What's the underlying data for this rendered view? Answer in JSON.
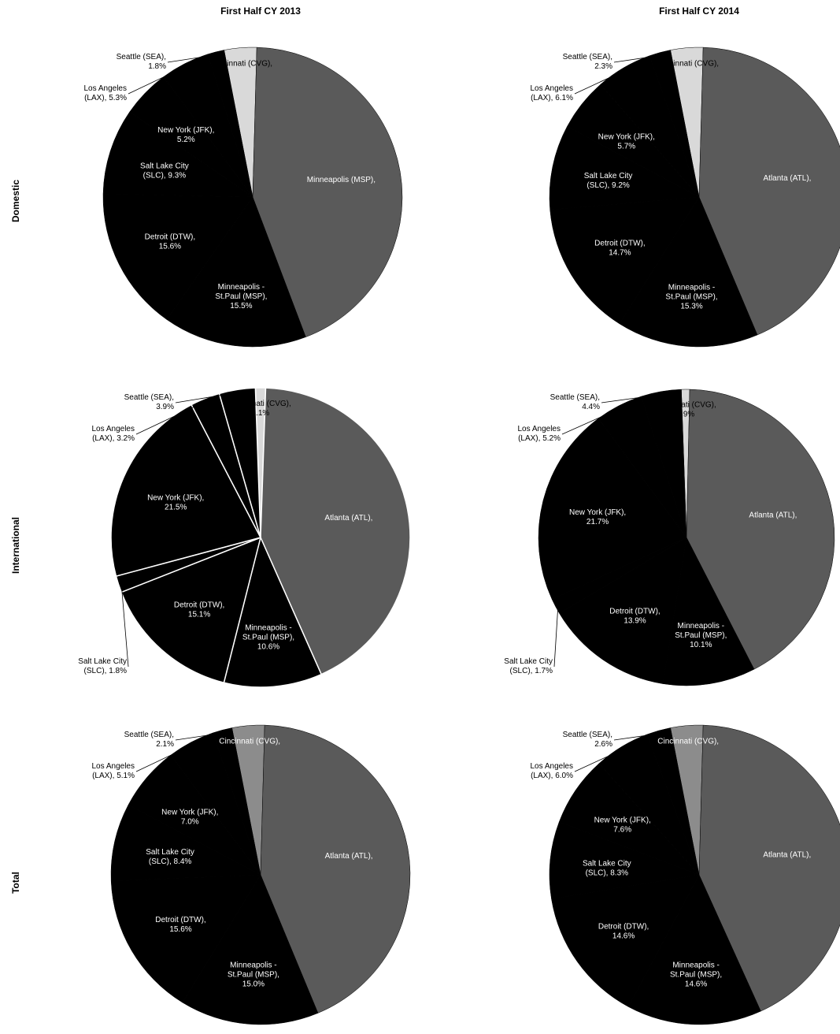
{
  "columns": [
    "First Half CY 2013",
    "First Half CY 2014"
  ],
  "rows": [
    "Domestic",
    "International",
    "Total"
  ],
  "colors": {
    "dark": "#000000",
    "grey": "#5a5a5a",
    "light": "#d9d9d9",
    "mid": "#8c8c8c",
    "separator": "#ffffff"
  },
  "chart_data": [
    {
      "type": "pie",
      "row": "Domestic",
      "column": "First Half CY 2013",
      "slices": [
        {
          "line1": "Cincinnati (CVG),",
          "line2": "",
          "value": null
        },
        {
          "line1": "Minneapolis (MSP),",
          "line2": "",
          "value": null
        },
        {
          "line1": "Minneapolis -",
          "line2": "St.Paul (MSP),",
          "line3": "15.5%",
          "value": 15.5
        },
        {
          "line1": "Detroit (DTW),",
          "line2": "15.6%",
          "value": 15.6
        },
        {
          "line1": "Salt Lake City",
          "line2": "(SLC), 9.3%",
          "value": 9.3
        },
        {
          "line1": "New York (JFK),",
          "line2": "5.2%",
          "value": 5.2
        },
        {
          "line1": "Los Angeles",
          "line2": "(LAX), 5.3%",
          "value": 5.3
        },
        {
          "line1": "Seattle (SEA),",
          "line2": "1.8%",
          "value": 1.8
        }
      ]
    },
    {
      "type": "pie",
      "row": "Domestic",
      "column": "First Half CY 2014",
      "slices": [
        {
          "line1": "Cincinnati (CVG),",
          "line2": "",
          "value": null
        },
        {
          "line1": "Atlanta (ATL),",
          "line2": "",
          "value": null
        },
        {
          "line1": "Minneapolis -",
          "line2": "St.Paul (MSP),",
          "line3": "15.3%",
          "value": 15.3
        },
        {
          "line1": "Detroit (DTW),",
          "line2": "14.7%",
          "value": 14.7
        },
        {
          "line1": "Salt Lake City",
          "line2": "(SLC), 9.2%",
          "value": 9.2
        },
        {
          "line1": "New York (JFK),",
          "line2": "5.7%",
          "value": 5.7
        },
        {
          "line1": "Los Angeles",
          "line2": "(LAX), 6.1%",
          "value": 6.1
        },
        {
          "line1": "Seattle (SEA),",
          "line2": "2.3%",
          "value": 2.3
        }
      ]
    },
    {
      "type": "pie",
      "row": "International",
      "column": "First Half CY 2013",
      "slices": [
        {
          "line1": "Cincinnati (CVG),",
          "line2": "1.1%",
          "value": 1.1
        },
        {
          "line1": "Atlanta (ATL),",
          "line2": "",
          "value": null
        },
        {
          "line1": "Minneapolis -",
          "line2": "St.Paul (MSP),",
          "line3": "10.6%",
          "value": 10.6
        },
        {
          "line1": "Detroit (DTW),",
          "line2": "15.1%",
          "value": 15.1
        },
        {
          "line1": "Salt Lake City",
          "line2": "(SLC), 1.8%",
          "value": 1.8
        },
        {
          "line1": "New York (JFK),",
          "line2": "21.5%",
          "value": 21.5
        },
        {
          "line1": "Los Angeles",
          "line2": "(LAX), 3.2%",
          "value": 3.2
        },
        {
          "line1": "Seattle (SEA),",
          "line2": "3.9%",
          "value": 3.9
        }
      ]
    },
    {
      "type": "pie",
      "row": "International",
      "column": "First Half CY 2014",
      "slices": [
        {
          "line1": "Cincinnati (CVG),",
          "line2": "0.9%",
          "value": 0.9
        },
        {
          "line1": "Atlanta (ATL),",
          "line2": "",
          "value": null
        },
        {
          "line1": "Minneapolis -",
          "line2": "St.Paul (MSP),",
          "line3": "10.1%",
          "value": 10.1
        },
        {
          "line1": "Detroit (DTW),",
          "line2": "13.9%",
          "value": 13.9
        },
        {
          "line1": "Salt Lake City",
          "line2": "(SLC), 1.7%",
          "value": 1.7
        },
        {
          "line1": "New York (JFK),",
          "line2": "21.7%",
          "value": 21.7
        },
        {
          "line1": "Los Angeles",
          "line2": "(LAX), 5.2%",
          "value": 5.2
        },
        {
          "line1": "Seattle (SEA),",
          "line2": "4.4%",
          "value": 4.4
        }
      ]
    },
    {
      "type": "pie",
      "row": "Total",
      "column": "First Half CY 2013",
      "slices": [
        {
          "line1": "Cincinnati (CVG),",
          "line2": "",
          "value": null
        },
        {
          "line1": "Atlanta (ATL),",
          "line2": "",
          "value": null
        },
        {
          "line1": "Minneapolis -",
          "line2": "St.Paul (MSP),",
          "line3": "15.0%",
          "value": 15.0
        },
        {
          "line1": "Detroit (DTW),",
          "line2": "15.6%",
          "value": 15.6
        },
        {
          "line1": "Salt Lake City",
          "line2": "(SLC), 8.4%",
          "value": 8.4
        },
        {
          "line1": "New York (JFK),",
          "line2": "7.0%",
          "value": 7.0
        },
        {
          "line1": "Los Angeles",
          "line2": "(LAX), 5.1%",
          "value": 5.1
        },
        {
          "line1": "Seattle (SEA),",
          "line2": "2.1%",
          "value": 2.1
        }
      ]
    },
    {
      "type": "pie",
      "row": "Total",
      "column": "First Half CY 2014",
      "slices": [
        {
          "line1": "Cincinnati (CVG),",
          "line2": "",
          "value": null
        },
        {
          "line1": "Atlanta (ATL),",
          "line2": "",
          "value": null
        },
        {
          "line1": "Minneapolis -",
          "line2": "St.Paul (MSP),",
          "line3": "14.6%",
          "value": 14.6
        },
        {
          "line1": "Detroit (DTW),",
          "line2": "14.6%",
          "value": 14.6
        },
        {
          "line1": "Salt Lake City",
          "line2": "(SLC), 8.3%",
          "value": 8.3
        },
        {
          "line1": "New York (JFK),",
          "line2": "7.6%",
          "value": 7.6
        },
        {
          "line1": "Los Angeles",
          "line2": "(LAX), 6.0%",
          "value": 6.0
        },
        {
          "line1": "Seattle (SEA),",
          "line2": "2.6%",
          "value": 2.6
        }
      ]
    }
  ]
}
